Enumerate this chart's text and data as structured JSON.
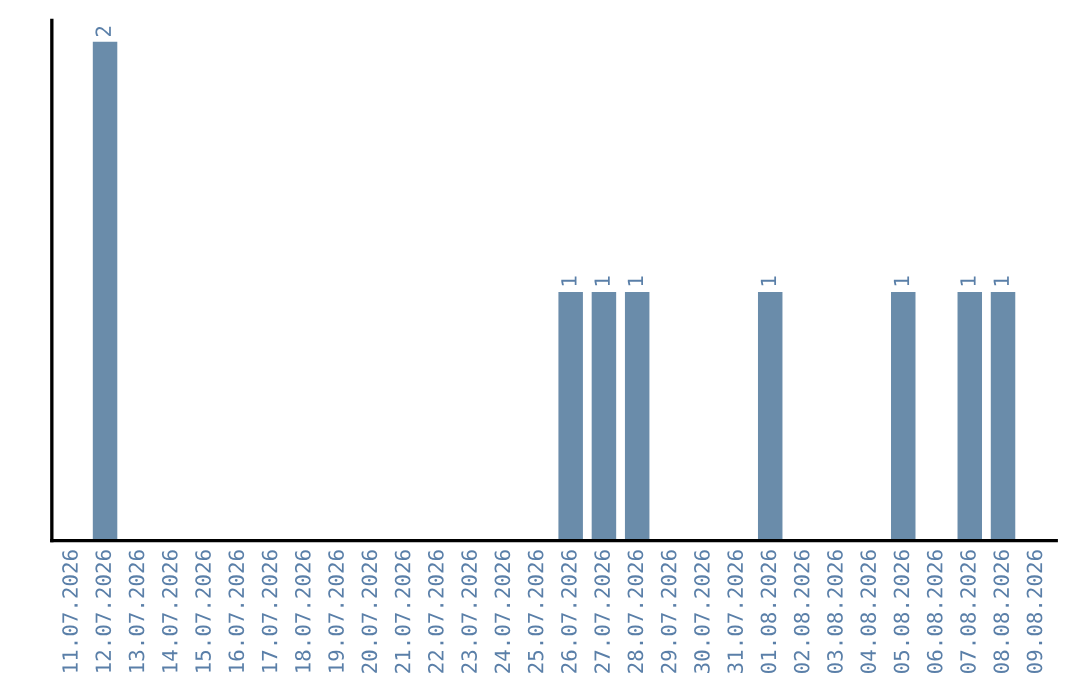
{
  "chart_data": {
    "type": "bar",
    "categories": [
      "11.07.2026",
      "12.07.2026",
      "13.07.2026",
      "14.07.2026",
      "15.07.2026",
      "16.07.2026",
      "17.07.2026",
      "18.07.2026",
      "19.07.2026",
      "20.07.2026",
      "21.07.2026",
      "22.07.2026",
      "23.07.2026",
      "24.07.2026",
      "25.07.2026",
      "26.07.2026",
      "27.07.2026",
      "28.07.2026",
      "29.07.2026",
      "30.07.2026",
      "31.07.2026",
      "01.08.2026",
      "02.08.2026",
      "03.08.2026",
      "04.08.2026",
      "05.08.2026",
      "06.08.2026",
      "07.08.2026",
      "08.08.2026",
      "09.08.2026"
    ],
    "values": [
      null,
      2,
      null,
      null,
      null,
      null,
      null,
      null,
      null,
      null,
      null,
      null,
      null,
      null,
      null,
      1,
      1,
      1,
      null,
      null,
      null,
      1,
      null,
      null,
      null,
      1,
      null,
      1,
      1,
      null
    ],
    "value_labels": [
      null,
      "2",
      null,
      null,
      null,
      null,
      null,
      null,
      null,
      null,
      null,
      null,
      null,
      null,
      null,
      "1",
      "1",
      "1",
      null,
      null,
      null,
      "1",
      null,
      null,
      null,
      "1",
      null,
      "1",
      "1",
      null
    ],
    "color": "#6a8caa",
    "grid": false,
    "legend": false,
    "tick_labels": "x"
  }
}
